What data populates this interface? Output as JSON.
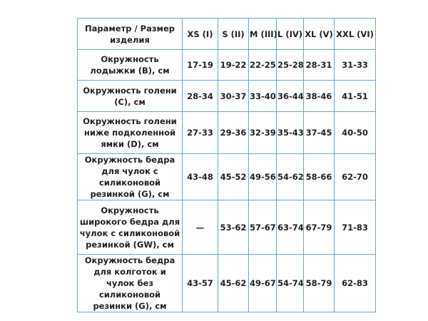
{
  "table": {
    "header": [
      "Параметр / Размер изделия",
      "XS (I)",
      "S (II)",
      "M (III)",
      "L (IV)",
      "XL (V)",
      "XXL (VI)"
    ],
    "rows": [
      {
        "param": "Окружность лодыжки (B), см",
        "values": [
          "17-19",
          "19-22",
          "22-25",
          "25-28",
          "28-31",
          "31-33"
        ]
      },
      {
        "param": "Окружность голени (C), см",
        "values": [
          "28-34",
          "30-37",
          "33-40",
          "36-44",
          "38-46",
          "41-51"
        ]
      },
      {
        "param": "Окружность голени ниже подколенной ямки (D), см",
        "values": [
          "27-33",
          "29-36",
          "32-39",
          "35-43",
          "37-45",
          "40-50"
        ]
      },
      {
        "param": "Окружность бедра для чулок с силиконовой резинкой (G), см",
        "values": [
          "43-48",
          "45-52",
          "49-56",
          "54-62",
          "58-66",
          "62-70"
        ]
      },
      {
        "param": "Окружность широкого бедра для чулок с силиконовой резинкой (GW), см",
        "values": [
          "—",
          "53-62",
          "57-67",
          "63-74",
          "67-79",
          "71-83"
        ]
      },
      {
        "param": "Окружность бедра для колготок и чулок без силиконовой резинки (G), см",
        "values": [
          "43-57",
          "45-62",
          "49-67",
          "54-74",
          "58-79",
          "62-83"
        ]
      }
    ]
  }
}
